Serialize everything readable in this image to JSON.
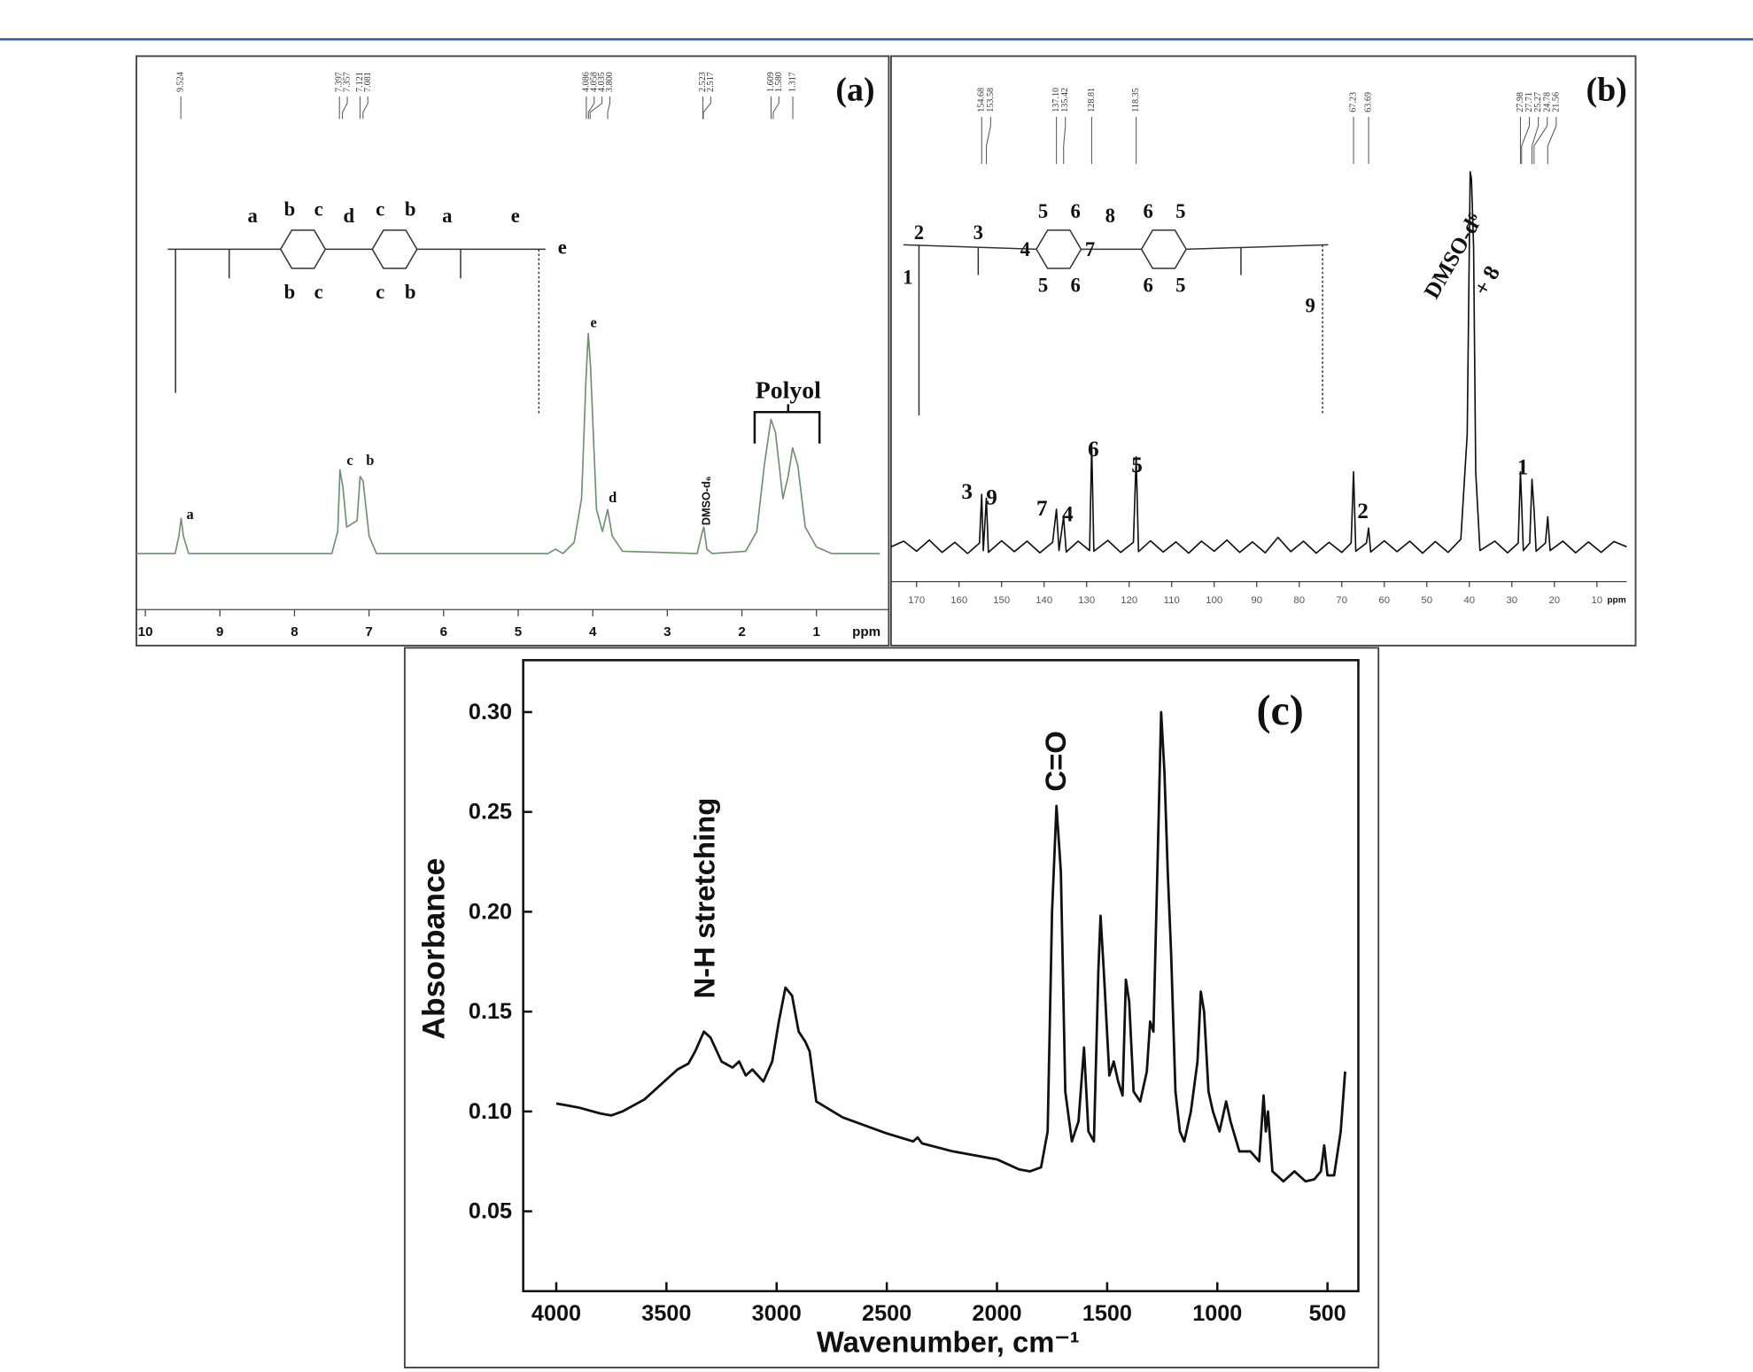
{
  "chart_data": [
    {
      "type": "line",
      "title": "(a)",
      "xlabel": "ppm",
      "color": "#6f8f6f",
      "xlim": [
        10.12,
        0.15
      ],
      "ylim": [
        0,
        100
      ],
      "xticks": [
        10,
        9,
        8,
        7,
        6,
        5,
        4,
        3,
        2,
        1
      ],
      "x": [
        10.12,
        9.6,
        9.55,
        9.52,
        9.49,
        9.42,
        7.5,
        7.42,
        7.39,
        7.35,
        7.3,
        7.16,
        7.12,
        7.08,
        7.0,
        6.9,
        4.6,
        4.5,
        4.4,
        4.25,
        4.15,
        4.09,
        4.06,
        4.03,
        3.95,
        3.87,
        3.8,
        3.74,
        3.6,
        2.6,
        2.53,
        2.51,
        2.47,
        2.4,
        1.95,
        1.8,
        1.7,
        1.61,
        1.55,
        1.45,
        1.38,
        1.32,
        1.25,
        1.15,
        1.0,
        0.8,
        0.15
      ],
      "values": [
        0,
        0,
        8,
        16,
        8,
        0,
        0,
        10,
        38,
        30,
        12,
        15,
        35,
        33,
        8,
        0,
        0,
        2,
        0,
        5,
        25,
        80,
        100,
        85,
        20,
        10,
        20,
        8,
        1,
        0,
        10,
        12,
        2,
        0,
        1,
        10,
        40,
        61,
        55,
        25,
        35,
        48,
        40,
        12,
        3,
        0,
        0
      ],
      "peak_labels": [
        {
          "value": 9.524,
          "label": "9.524"
        },
        {
          "value": 7.397,
          "label": "7.397"
        },
        {
          "value": 7.357,
          "label": "7.357"
        },
        {
          "value": 7.121,
          "label": "7.121"
        },
        {
          "value": 7.081,
          "label": "7.081"
        },
        {
          "value": 4.086,
          "label": "4.086"
        },
        {
          "value": 4.058,
          "label": "4.058"
        },
        {
          "value": 4.035,
          "label": "4.035"
        },
        {
          "value": 3.8,
          "label": "3.800"
        },
        {
          "value": 2.523,
          "label": "2.523"
        },
        {
          "value": 2.517,
          "label": "2.517"
        },
        {
          "value": 1.609,
          "label": "1.609"
        },
        {
          "value": 1.58,
          "label": "1.580"
        },
        {
          "value": 1.317,
          "label": "1.317"
        }
      ],
      "annotations": [
        "Polyol",
        "DMSO-d₆",
        "a",
        "c",
        "b",
        "e",
        "d"
      ],
      "structure_labels": [
        "a",
        "b",
        "c",
        "d",
        "c",
        "b",
        "a",
        "e",
        "e",
        "b",
        "c",
        "c",
        "b"
      ]
    },
    {
      "type": "line",
      "title": "(b)",
      "xlabel": "ppm",
      "color": "#111111",
      "xlim": [
        176,
        3
      ],
      "ylim": [
        0,
        100
      ],
      "xticks": [
        170,
        160,
        150,
        140,
        130,
        120,
        110,
        100,
        90,
        80,
        70,
        60,
        50,
        40,
        30,
        20,
        10
      ],
      "x": [
        176,
        173,
        170,
        167,
        164,
        161,
        158,
        155.2,
        154.68,
        154.3,
        153.58,
        153.1,
        150,
        147,
        144,
        141,
        138,
        137.1,
        136.5,
        135.42,
        134.8,
        132,
        129.3,
        128.81,
        128.3,
        125,
        122,
        119,
        118.35,
        117.8,
        115,
        112,
        109,
        106,
        103,
        100,
        97,
        94,
        91,
        88,
        85,
        82,
        79,
        76,
        73,
        70,
        67.8,
        67.23,
        66.7,
        64.2,
        63.69,
        63.2,
        60,
        57,
        54,
        51,
        48,
        45,
        42,
        40.5,
        39.8,
        39.5,
        39,
        38.5,
        37.5,
        34,
        31,
        28.5,
        27.98,
        27.71,
        27.3,
        25.8,
        25.27,
        24.78,
        24.3,
        22.1,
        21.56,
        21,
        18,
        15,
        12,
        9,
        6,
        3
      ],
      "values": [
        0,
        1.5,
        -1.2,
        1.8,
        -1.5,
        1.2,
        -1.8,
        1,
        14,
        -1,
        13,
        -1.5,
        1.6,
        -1.3,
        1.5,
        -1.6,
        1.2,
        10,
        -1,
        8,
        -1.4,
        1.5,
        -1,
        27,
        -1.2,
        1.7,
        -1.5,
        1.2,
        24,
        -1.3,
        1.6,
        -1.4,
        1.3,
        -1.7,
        1.5,
        -1.2,
        1.8,
        -1.5,
        1.3,
        -1.6,
        2.5,
        -1.3,
        1.5,
        -1.7,
        1.2,
        -1.5,
        1,
        20,
        -1.2,
        1,
        5,
        -1.4,
        1.6,
        -1.3,
        1.5,
        -1.7,
        1.4,
        -1.5,
        2,
        30,
        100,
        98,
        80,
        20,
        -1,
        1.5,
        -1.6,
        1,
        20,
        12,
        -1,
        1,
        18,
        10,
        -1.2,
        1,
        8,
        -1,
        1.5,
        -1.6,
        1.3,
        -1.5,
        1.4,
        0
      ],
      "peak_labels": [
        {
          "value": 154.68,
          "label": "154.68"
        },
        {
          "value": 153.58,
          "label": "153.58"
        },
        {
          "value": 137.1,
          "label": "137.10"
        },
        {
          "value": 135.42,
          "label": "135.42"
        },
        {
          "value": 128.81,
          "label": "128.81"
        },
        {
          "value": 118.35,
          "label": "118.35"
        },
        {
          "value": 67.23,
          "label": "67.23"
        },
        {
          "value": 63.69,
          "label": "63.69"
        },
        {
          "value": 27.98,
          "label": "27.98"
        },
        {
          "value": 27.71,
          "label": "27.71"
        },
        {
          "value": 25.27,
          "label": "25.27"
        },
        {
          "value": 24.78,
          "label": "24.78"
        },
        {
          "value": 21.56,
          "label": "21.56"
        }
      ],
      "annotations": [
        "3",
        "9",
        "7",
        "4",
        "6",
        "5",
        "2",
        "1",
        "DMSO-d⁶",
        "+ 8"
      ],
      "structure_labels": [
        "2",
        "3",
        "4",
        "5",
        "6",
        "7",
        "8",
        "6",
        "5",
        "5",
        "6",
        "6",
        "5",
        "1",
        "9"
      ]
    },
    {
      "type": "line",
      "title": "(c)",
      "xlabel": "Wavenumber, cm⁻¹",
      "ylabel": "Absorbance",
      "color": "#111111",
      "xlim": [
        4150,
        360
      ],
      "ylim": [
        0.01,
        0.326
      ],
      "xticks": [
        4000,
        3500,
        3000,
        2500,
        2000,
        1500,
        1000,
        500
      ],
      "yticks": [
        {
          "value": 0.05,
          "label": "0.05"
        },
        {
          "value": 0.1,
          "label": "0.10"
        },
        {
          "value": 0.15,
          "label": "0.15"
        },
        {
          "value": 0.2,
          "label": "0.20"
        },
        {
          "value": 0.25,
          "label": "0.25"
        },
        {
          "value": 0.3,
          "label": "0.30"
        }
      ],
      "x": [
        4000,
        3900,
        3800,
        3750,
        3700,
        3600,
        3500,
        3450,
        3400,
        3370,
        3330,
        3300,
        3250,
        3200,
        3170,
        3140,
        3110,
        3060,
        3020,
        2990,
        2960,
        2930,
        2900,
        2870,
        2850,
        2820,
        2700,
        2500,
        2380,
        2360,
        2340,
        2200,
        2000,
        1900,
        1850,
        1800,
        1770,
        1750,
        1730,
        1710,
        1690,
        1660,
        1630,
        1605,
        1585,
        1560,
        1540,
        1530,
        1515,
        1490,
        1470,
        1450,
        1430,
        1415,
        1400,
        1380,
        1350,
        1320,
        1305,
        1290,
        1270,
        1255,
        1240,
        1225,
        1210,
        1190,
        1170,
        1150,
        1120,
        1090,
        1075,
        1060,
        1040,
        1020,
        990,
        960,
        940,
        900,
        850,
        810,
        790,
        780,
        770,
        750,
        700,
        650,
        600,
        560,
        530,
        515,
        500,
        470,
        440,
        420
      ],
      "values": [
        0.104,
        0.102,
        0.099,
        0.098,
        0.1,
        0.106,
        0.116,
        0.121,
        0.124,
        0.13,
        0.14,
        0.137,
        0.125,
        0.122,
        0.125,
        0.118,
        0.121,
        0.115,
        0.125,
        0.145,
        0.162,
        0.158,
        0.14,
        0.135,
        0.13,
        0.105,
        0.097,
        0.089,
        0.085,
        0.087,
        0.084,
        0.08,
        0.076,
        0.071,
        0.07,
        0.072,
        0.09,
        0.2,
        0.253,
        0.22,
        0.11,
        0.085,
        0.095,
        0.132,
        0.09,
        0.085,
        0.17,
        0.198,
        0.17,
        0.118,
        0.125,
        0.115,
        0.108,
        0.166,
        0.155,
        0.11,
        0.105,
        0.12,
        0.145,
        0.14,
        0.23,
        0.3,
        0.27,
        0.22,
        0.18,
        0.11,
        0.09,
        0.085,
        0.1,
        0.125,
        0.16,
        0.15,
        0.11,
        0.1,
        0.09,
        0.105,
        0.095,
        0.08,
        0.08,
        0.075,
        0.108,
        0.09,
        0.1,
        0.07,
        0.065,
        0.07,
        0.065,
        0.066,
        0.07,
        0.083,
        0.068,
        0.068,
        0.09,
        0.12
      ],
      "annotations": [
        "N-H stretching",
        "C=O"
      ]
    }
  ]
}
